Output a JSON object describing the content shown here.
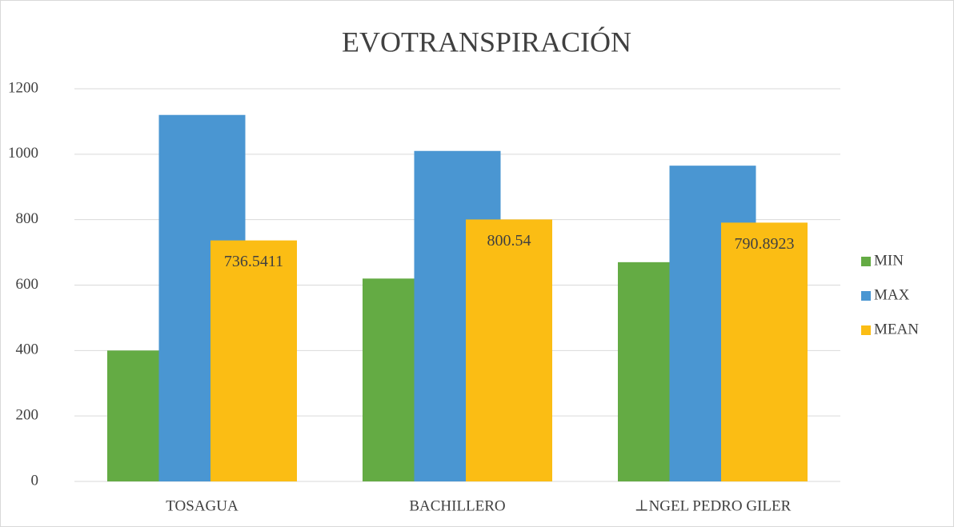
{
  "chart_data": {
    "type": "bar",
    "title": "EVOTRANSPIRACIÓN",
    "categories": [
      "TOSAGUA",
      "BACHILLERO",
      "⊥NGEL PEDRO GILER"
    ],
    "series": [
      {
        "name": "MIN",
        "color": "#64ab44",
        "values": [
          400,
          620,
          670
        ]
      },
      {
        "name": "MAX",
        "color": "#4a96d2",
        "values": [
          1120,
          1010,
          965
        ]
      },
      {
        "name": "MEAN",
        "color": "#fbbd14",
        "values": [
          736.5411,
          800.54,
          790.8923
        ],
        "data_labels": true
      }
    ],
    "ylim": [
      0,
      1200
    ],
    "yticks": [
      0,
      200,
      400,
      600,
      800,
      1000,
      1200
    ],
    "grid": true,
    "legend": "right"
  }
}
